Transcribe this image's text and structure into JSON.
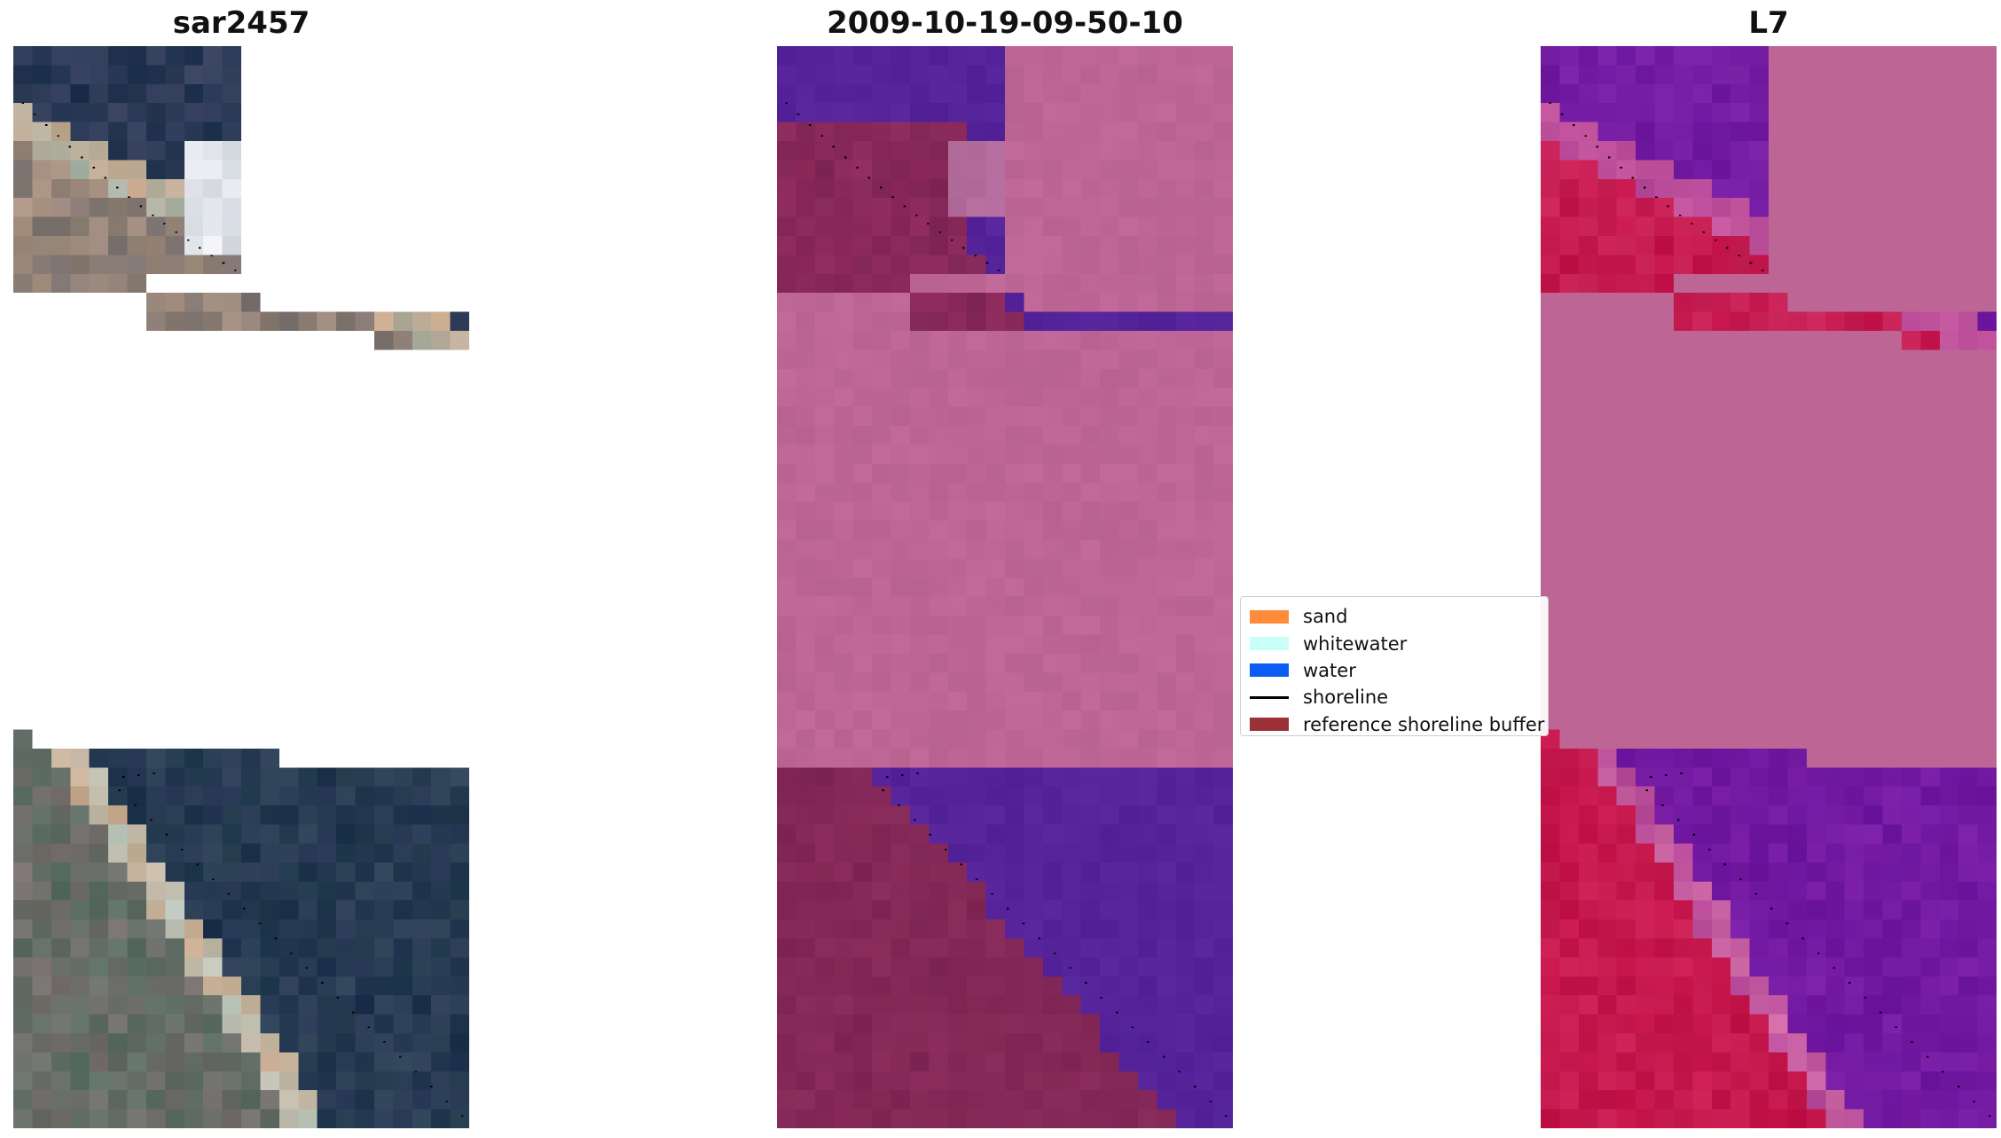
{
  "titles": {
    "left": "sar2457",
    "middle": "2009-10-19-09-50-10",
    "right": "L7"
  },
  "legend": {
    "items": [
      {
        "label": "sand",
        "color": "#ff8c3a",
        "kind": "patch"
      },
      {
        "label": "whitewater",
        "color": "#c8fff8",
        "kind": "patch"
      },
      {
        "label": "water",
        "color": "#0b5cf5",
        "kind": "patch"
      },
      {
        "label": "shoreline",
        "color": "#000000",
        "kind": "line"
      },
      {
        "label": "reference shoreline buffer",
        "color": "#9b3036",
        "kind": "patch"
      }
    ]
  },
  "colors": {
    "masked_pink": "#bd6695",
    "water_class": "#55239a",
    "land_class": "#7a2556",
    "rgb_water": "#223550",
    "false_color_water": "#6e17a0",
    "false_color_land": "#c4134a"
  }
}
